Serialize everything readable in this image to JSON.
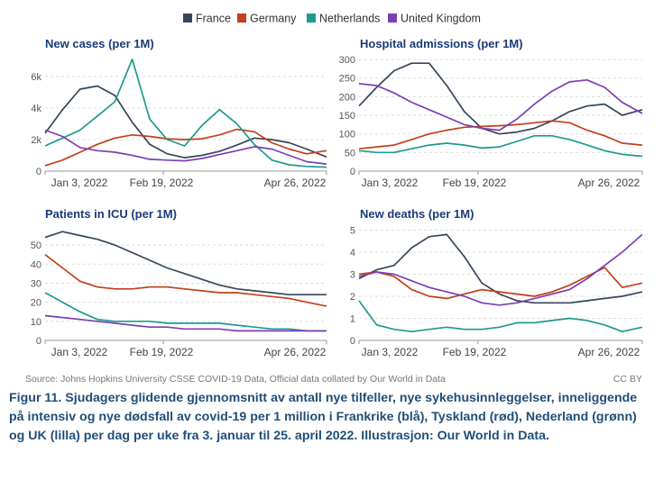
{
  "legend": [
    {
      "name": "France",
      "color": "#37465c"
    },
    {
      "name": "Germany",
      "color": "#c2401b"
    },
    {
      "name": "Netherlands",
      "color": "#1e9a8f"
    },
    {
      "name": "United Kingdom",
      "color": "#7b3fb5"
    }
  ],
  "source": "Source: Johns Hopkins University CSSE COVID-19 Data, Official data collated by Our World in Data",
  "license": "CC BY",
  "caption": "Figur 11. Sjudagers glidende gjennomsnitt av antall nye tilfeller, nye sykehusinnleggelser, inneliggende på intensiv og nye dødsfall av covid-19 per 1 million i Frankrike (blå), Tyskland (rød), Nederland (grønn) og UK (lilla) per dag per uke fra 3. januar til 25. april 2022. Illustrasjon: Our World in Data.",
  "chart_data": [
    {
      "type": "line",
      "title": "New cases (per 1M)",
      "x": [
        "2022-01-03",
        "2022-01-10",
        "2022-01-17",
        "2022-01-24",
        "2022-01-31",
        "2022-02-07",
        "2022-02-14",
        "2022-02-21",
        "2022-02-28",
        "2022-03-07",
        "2022-03-14",
        "2022-03-21",
        "2022-03-28",
        "2022-04-04",
        "2022-04-11",
        "2022-04-18",
        "2022-04-26"
      ],
      "x_ticks": [
        "Jan 3, 2022",
        "Feb 19, 2022",
        "Apr 26, 2022"
      ],
      "y_ticks": [
        {
          "value": 0,
          "label": "0"
        },
        {
          "value": 2000,
          "label": "2k"
        },
        {
          "value": 4000,
          "label": "4k"
        },
        {
          "value": 6000,
          "label": "6k"
        }
      ],
      "ylim": [
        0,
        7200
      ],
      "series": [
        {
          "name": "France",
          "values": [
            2400,
            3900,
            5200,
            5400,
            4800,
            3100,
            1700,
            1100,
            850,
            1000,
            1250,
            1650,
            2100,
            2000,
            1800,
            1400,
            900
          ]
        },
        {
          "name": "Germany",
          "values": [
            350,
            700,
            1200,
            1700,
            2100,
            2300,
            2200,
            2050,
            2000,
            2050,
            2300,
            2650,
            2500,
            1800,
            1400,
            1100,
            1300
          ]
        },
        {
          "name": "Netherlands",
          "values": [
            1600,
            2100,
            2600,
            3500,
            4400,
            7100,
            3300,
            2000,
            1600,
            2900,
            3900,
            3000,
            1700,
            700,
            400,
            300,
            250
          ]
        },
        {
          "name": "United Kingdom",
          "values": [
            2600,
            2200,
            1500,
            1300,
            1200,
            1000,
            750,
            700,
            650,
            800,
            1050,
            1300,
            1550,
            1400,
            1000,
            600,
            450
          ]
        }
      ]
    },
    {
      "type": "line",
      "title": "Hospital admissions (per 1M)",
      "x": [
        "2022-01-03",
        "2022-01-10",
        "2022-01-17",
        "2022-01-24",
        "2022-01-31",
        "2022-02-07",
        "2022-02-14",
        "2022-02-21",
        "2022-02-28",
        "2022-03-07",
        "2022-03-14",
        "2022-03-21",
        "2022-03-28",
        "2022-04-04",
        "2022-04-11",
        "2022-04-18",
        "2022-04-26"
      ],
      "x_ticks": [
        "Jan 3, 2022",
        "Feb 19, 2022",
        "Apr 26, 2022"
      ],
      "y_ticks": [
        {
          "value": 0,
          "label": "0"
        },
        {
          "value": 50,
          "label": "50"
        },
        {
          "value": 100,
          "label": "100"
        },
        {
          "value": 150,
          "label": "150"
        },
        {
          "value": 200,
          "label": "200"
        },
        {
          "value": 250,
          "label": "250"
        },
        {
          "value": 300,
          "label": "300"
        }
      ],
      "ylim": [
        0,
        305
      ],
      "series": [
        {
          "name": "France",
          "values": [
            175,
            225,
            270,
            290,
            290,
            230,
            160,
            115,
            100,
            105,
            115,
            135,
            160,
            175,
            180,
            150,
            165
          ]
        },
        {
          "name": "Germany",
          "values": [
            60,
            65,
            70,
            85,
            100,
            110,
            118,
            120,
            122,
            125,
            130,
            135,
            130,
            110,
            95,
            75,
            70
          ]
        },
        {
          "name": "Netherlands",
          "values": [
            55,
            50,
            50,
            60,
            70,
            75,
            70,
            62,
            65,
            80,
            95,
            95,
            85,
            70,
            55,
            45,
            40
          ]
        },
        {
          "name": "United Kingdom",
          "values": [
            235,
            230,
            210,
            185,
            165,
            145,
            125,
            115,
            110,
            140,
            180,
            215,
            240,
            245,
            225,
            185,
            155
          ]
        }
      ]
    },
    {
      "type": "line",
      "title": "Patients in ICU (per 1M)",
      "x": [
        "2022-01-03",
        "2022-01-10",
        "2022-01-17",
        "2022-01-24",
        "2022-01-31",
        "2022-02-07",
        "2022-02-14",
        "2022-02-21",
        "2022-02-28",
        "2022-03-07",
        "2022-03-14",
        "2022-03-21",
        "2022-03-28",
        "2022-04-04",
        "2022-04-11",
        "2022-04-18",
        "2022-04-26"
      ],
      "x_ticks": [
        "Jan 3, 2022",
        "Feb 19, 2022",
        "Apr 26, 2022"
      ],
      "y_ticks": [
        {
          "value": 0,
          "label": "0"
        },
        {
          "value": 10,
          "label": "10"
        },
        {
          "value": 20,
          "label": "20"
        },
        {
          "value": 30,
          "label": "30"
        },
        {
          "value": 40,
          "label": "40"
        },
        {
          "value": 50,
          "label": "50"
        }
      ],
      "ylim": [
        0,
        59
      ],
      "series": [
        {
          "name": "France",
          "values": [
            54,
            57,
            55,
            53,
            50,
            46,
            42,
            38,
            35,
            32,
            29,
            27,
            26,
            25,
            24,
            24,
            24
          ]
        },
        {
          "name": "Germany",
          "values": [
            45,
            38,
            31,
            28,
            27,
            27,
            28,
            28,
            27,
            26,
            25,
            25,
            24,
            23,
            22,
            20,
            18
          ]
        },
        {
          "name": "Netherlands",
          "values": [
            25,
            20,
            15,
            11,
            10,
            10,
            10,
            9,
            9,
            9,
            9,
            8,
            7,
            6,
            6,
            5,
            5
          ]
        },
        {
          "name": "United Kingdom",
          "values": [
            13,
            12,
            11,
            10,
            9,
            8,
            7,
            7,
            6,
            6,
            6,
            5,
            5,
            5,
            5,
            5,
            5
          ]
        }
      ]
    },
    {
      "type": "line",
      "title": "New deaths (per 1M)",
      "x": [
        "2022-01-03",
        "2022-01-10",
        "2022-01-17",
        "2022-01-24",
        "2022-01-31",
        "2022-02-07",
        "2022-02-14",
        "2022-02-21",
        "2022-02-28",
        "2022-03-07",
        "2022-03-14",
        "2022-03-21",
        "2022-03-28",
        "2022-04-04",
        "2022-04-11",
        "2022-04-18",
        "2022-04-26"
      ],
      "x_ticks": [
        "Jan 3, 2022",
        "Feb 19, 2022",
        "Apr 26, 2022"
      ],
      "y_ticks": [
        {
          "value": 0,
          "label": "0"
        },
        {
          "value": 1,
          "label": "1"
        },
        {
          "value": 2,
          "label": "2"
        },
        {
          "value": 3,
          "label": "3"
        },
        {
          "value": 4,
          "label": "4"
        },
        {
          "value": 5,
          "label": "5"
        }
      ],
      "ylim": [
        0,
        5.1
      ],
      "series": [
        {
          "name": "France",
          "values": [
            2.8,
            3.2,
            3.4,
            4.2,
            4.7,
            4.8,
            3.8,
            2.6,
            2.1,
            1.8,
            1.7,
            1.7,
            1.7,
            1.8,
            1.9,
            2.0,
            2.2
          ]
        },
        {
          "name": "Germany",
          "values": [
            3.0,
            3.1,
            2.9,
            2.3,
            2.0,
            1.9,
            2.1,
            2.3,
            2.2,
            2.1,
            2.0,
            2.2,
            2.5,
            2.9,
            3.3,
            2.4,
            2.6
          ]
        },
        {
          "name": "Netherlands",
          "values": [
            1.8,
            0.7,
            0.5,
            0.4,
            0.5,
            0.6,
            0.5,
            0.5,
            0.6,
            0.8,
            0.8,
            0.9,
            1.0,
            0.9,
            0.7,
            0.4,
            0.6
          ]
        },
        {
          "name": "United Kingdom",
          "values": [
            2.9,
            3.1,
            3.0,
            2.7,
            2.4,
            2.2,
            2.0,
            1.7,
            1.6,
            1.7,
            1.9,
            2.1,
            2.3,
            2.8,
            3.4,
            4.0,
            4.8
          ]
        }
      ]
    }
  ]
}
